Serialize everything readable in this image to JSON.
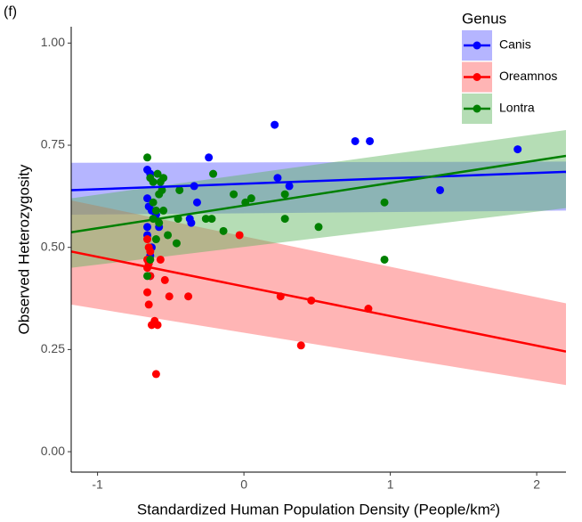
{
  "chart_data": {
    "type": "scatter",
    "panel_label": "(f)",
    "x_label": "Standardized Human Population Density (People/km²)",
    "y_label": "Observed Heterozygosity",
    "legend_title": "Genus",
    "legend_position": "top-right",
    "grid": false,
    "xlim": [
      -1.18,
      2.2
    ],
    "ylim": [
      -0.05,
      1.04
    ],
    "xticks": [
      -1,
      0,
      1,
      2
    ],
    "yticks": [
      {
        "value": 0,
        "label": "0.00"
      },
      {
        "value": 0.25,
        "label": "0.25"
      },
      {
        "value": 0.5,
        "label": "0.50"
      },
      {
        "value": 0.75,
        "label": "0.75"
      },
      {
        "value": 1,
        "label": "1.00"
      }
    ],
    "series": [
      {
        "name": "Canis",
        "color": "#0000ff",
        "band_color": "#5a5aff",
        "x": [
          0.21,
          -0.24,
          0.76,
          0.86,
          1.87,
          1.34,
          0.23,
          0.31,
          -0.34,
          -0.32,
          -0.37,
          -0.36,
          -0.66,
          -0.64,
          -0.66,
          -0.65,
          -0.63,
          -0.66,
          -0.66,
          -0.63,
          -0.64,
          -0.64,
          -0.6,
          -0.58
        ],
        "values": [
          0.8,
          0.72,
          0.76,
          0.76,
          0.74,
          0.64,
          0.67,
          0.65,
          0.65,
          0.61,
          0.57,
          0.56,
          0.69,
          0.68,
          0.62,
          0.6,
          0.59,
          0.55,
          0.53,
          0.5,
          0.48,
          0.43,
          0.58,
          0.55
        ],
        "fit": {
          "x": [
            -1.18,
            2.2
          ],
          "y": [
            0.64,
            0.685
          ],
          "lower": [
            0.58,
            0.59
          ],
          "upper": [
            0.707,
            0.71
          ]
        }
      },
      {
        "name": "Oreamnos",
        "color": "#ff0000",
        "band_color": "#ff5a5a",
        "x": [
          -0.03,
          0.25,
          0.46,
          0.39,
          0.85,
          -0.38,
          -0.51,
          -0.54,
          -0.57,
          -0.6,
          -0.59,
          -0.63,
          -0.61,
          -0.66,
          -0.65,
          -0.64,
          -0.66,
          -0.65,
          -0.66,
          -0.64,
          -0.66,
          -0.65
        ],
        "values": [
          0.53,
          0.38,
          0.37,
          0.26,
          0.35,
          0.38,
          0.38,
          0.42,
          0.47,
          0.19,
          0.31,
          0.31,
          0.32,
          0.52,
          0.5,
          0.49,
          0.47,
          0.46,
          0.45,
          0.43,
          0.39,
          0.36
        ],
        "fit": {
          "x": [
            -1.18,
            2.2
          ],
          "y": [
            0.49,
            0.245
          ],
          "lower": [
            0.36,
            0.163
          ],
          "upper": [
            0.615,
            0.363
          ]
        }
      },
      {
        "name": "Lontra",
        "color": "#008000",
        "band_color": "#5ab45a",
        "x": [
          0.96,
          0.96,
          0.51,
          0.28,
          0.28,
          -0.07,
          0.01,
          0.05,
          -0.21,
          -0.22,
          -0.26,
          -0.14,
          -0.44,
          -0.45,
          -0.46,
          -0.52,
          -0.66,
          -0.64,
          -0.62,
          -0.59,
          -0.57,
          -0.55,
          -0.58,
          -0.56,
          -0.62,
          -0.6,
          -0.55,
          -0.62,
          -0.58,
          -0.64,
          -0.66,
          -0.6
        ],
        "values": [
          0.47,
          0.61,
          0.55,
          0.57,
          0.63,
          0.63,
          0.61,
          0.62,
          0.68,
          0.57,
          0.57,
          0.54,
          0.64,
          0.57,
          0.51,
          0.53,
          0.72,
          0.67,
          0.66,
          0.68,
          0.66,
          0.67,
          0.63,
          0.64,
          0.61,
          0.59,
          0.59,
          0.57,
          0.56,
          0.47,
          0.43,
          0.52
        ],
        "fit": {
          "x": [
            -1.18,
            2.2
          ],
          "y": [
            0.537,
            0.724
          ],
          "lower": [
            0.45,
            0.596
          ],
          "upper": [
            0.62,
            0.787
          ]
        }
      }
    ]
  }
}
